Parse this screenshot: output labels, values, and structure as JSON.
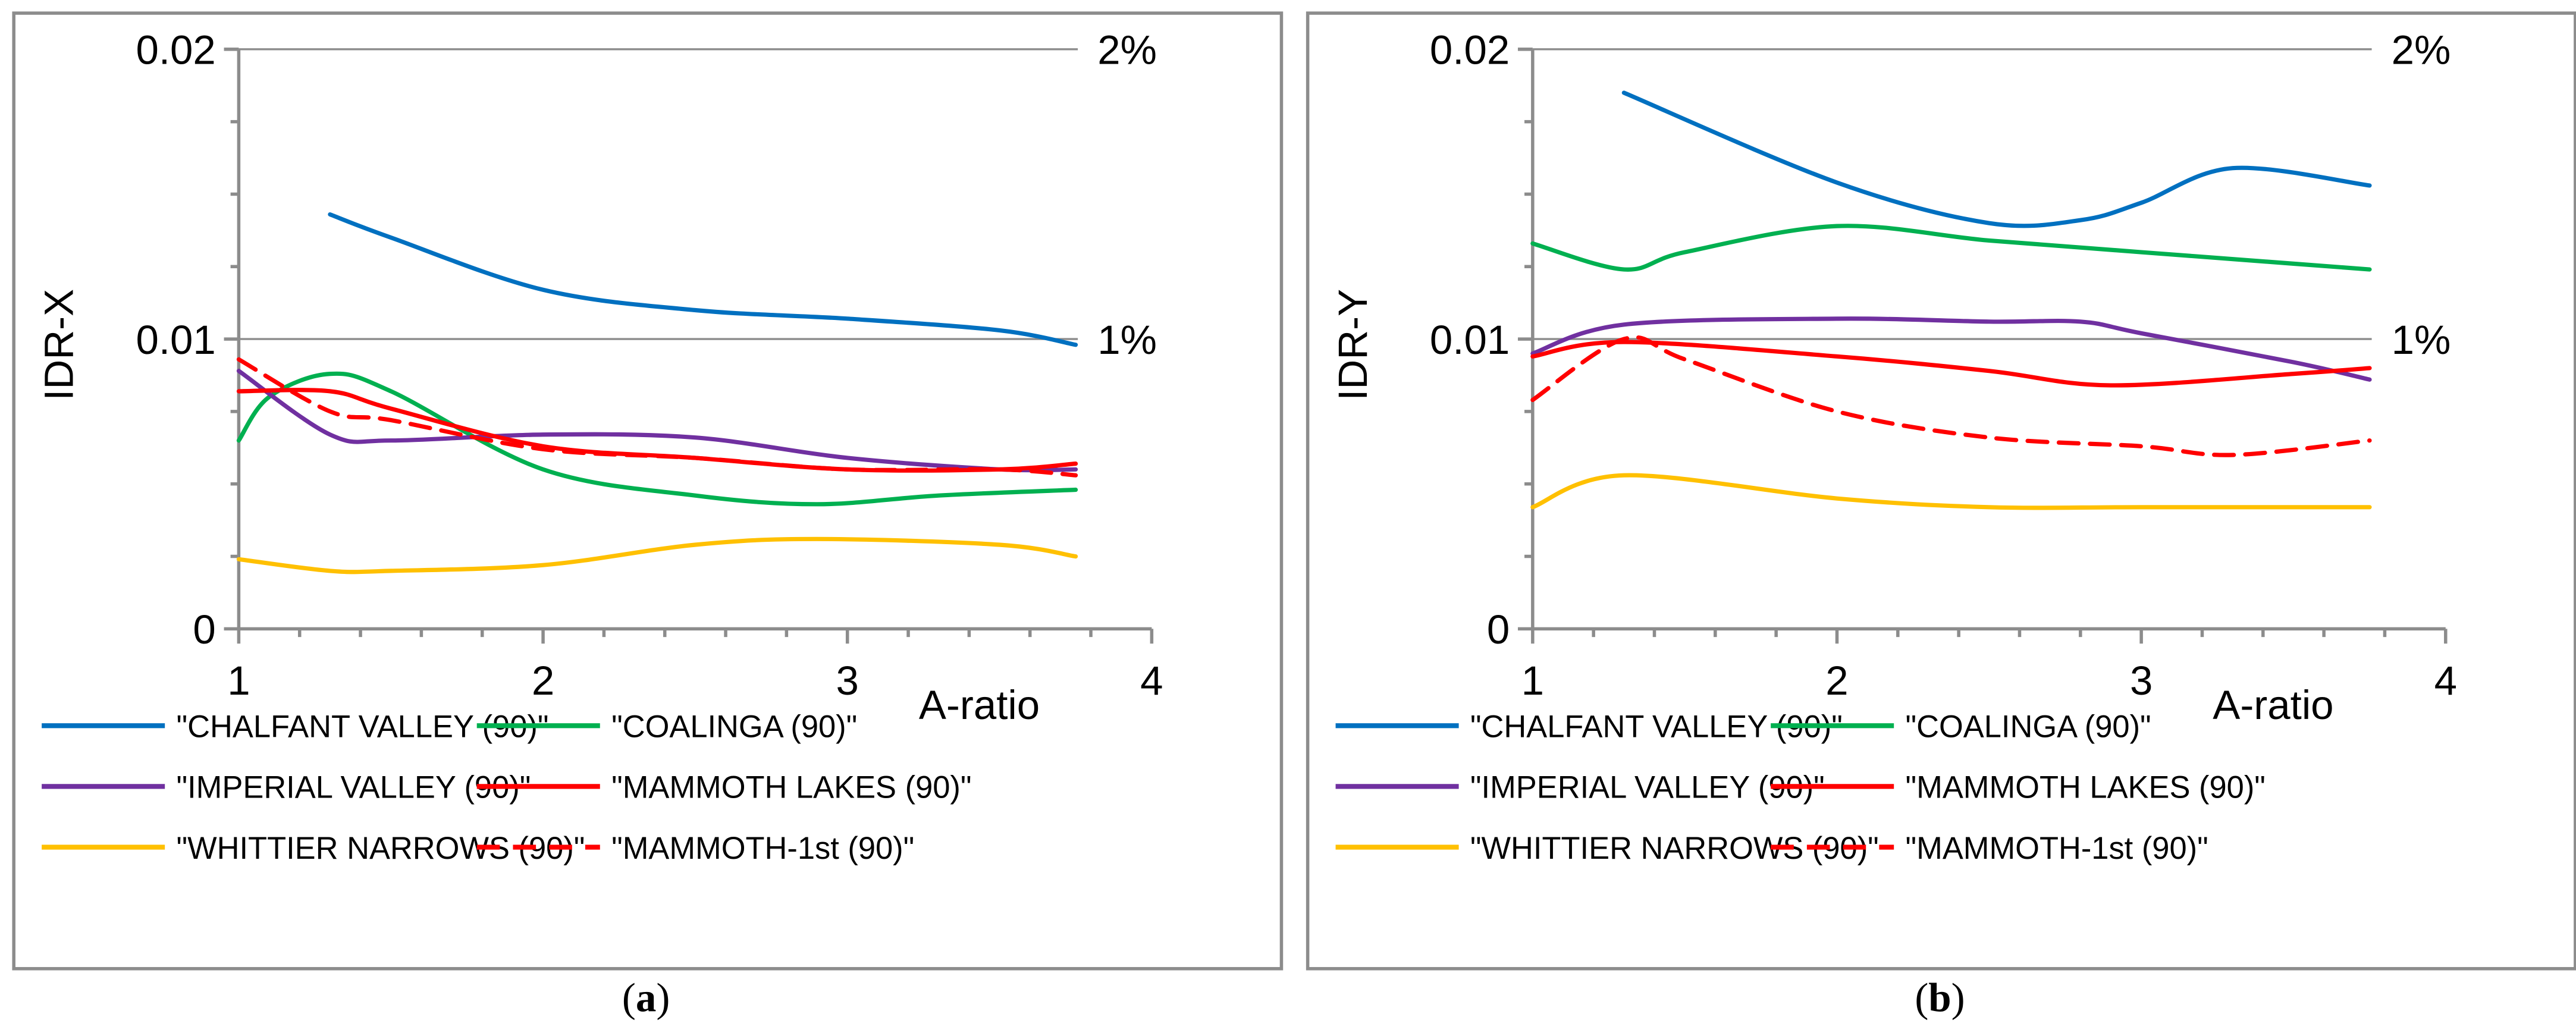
{
  "chart_data": [
    {
      "type": "line",
      "panel_label": "a",
      "ylabel": "IDR-X",
      "xlabel": "A-ratio",
      "xlim": [
        1,
        4
      ],
      "ylim": [
        0,
        0.02
      ],
      "x_ticks": [
        "1",
        "2",
        "3",
        "4"
      ],
      "y_ticks": [
        "0",
        "0.01",
        "0.02"
      ],
      "right_labels": [
        {
          "value": 0.01,
          "label": "1%"
        },
        {
          "value": 0.02,
          "label": "2%"
        }
      ],
      "grid": "horizontal at 0.01 and 0.02",
      "legend_position": "bottom",
      "series": [
        {
          "name": "\"CHALFANT VALLEY (90)\"",
          "color": "#0070C0",
          "dash": false,
          "x": [
            1.3,
            1.5,
            2,
            2.5,
            3,
            3.5,
            3.75
          ],
          "y": [
            0.0143,
            0.0135,
            0.0117,
            0.011,
            0.0107,
            0.0103,
            0.0098
          ]
        },
        {
          "name": "\"COALINGA (90)\"",
          "color": "#00B050",
          "dash": false,
          "x": [
            1,
            1.1,
            1.3,
            1.5,
            2,
            2.5,
            2.9,
            3.3,
            3.75
          ],
          "y": [
            0.0065,
            0.008,
            0.0088,
            0.0082,
            0.0055,
            0.0046,
            0.0043,
            0.0046,
            0.0048
          ]
        },
        {
          "name": "\"IMPERIAL VALLEY (90)\"",
          "color": "#7030A0",
          "dash": false,
          "x": [
            1,
            1.3,
            1.5,
            2,
            2.5,
            3,
            3.5,
            3.75
          ],
          "y": [
            0.0089,
            0.0067,
            0.0065,
            0.0067,
            0.0066,
            0.0059,
            0.0055,
            0.0055
          ]
        },
        {
          "name": "\"MAMMOTH LAKES (90)\"",
          "color": "#FF0000",
          "dash": false,
          "x": [
            1,
            1.3,
            1.5,
            2,
            2.5,
            3,
            3.5,
            3.75
          ],
          "y": [
            0.0082,
            0.0082,
            0.0076,
            0.0063,
            0.0059,
            0.0055,
            0.0055,
            0.0057
          ]
        },
        {
          "name": "\"WHITTIER NARROWS (90)\"",
          "color": "#FFC000",
          "dash": false,
          "x": [
            1,
            1.3,
            1.5,
            2,
            2.5,
            2.9,
            3.5,
            3.75
          ],
          "y": [
            0.0024,
            0.002,
            0.002,
            0.0022,
            0.0029,
            0.0031,
            0.0029,
            0.0025
          ]
        },
        {
          "name": "\"MAMMOTH-1st (90)\"",
          "color": "#FF0000",
          "dash": true,
          "x": [
            1,
            1.3,
            1.5,
            2,
            2.5,
            3,
            3.5,
            3.75
          ],
          "y": [
            0.0093,
            0.0075,
            0.0072,
            0.0062,
            0.0059,
            0.0055,
            0.0055,
            0.0053
          ]
        }
      ]
    },
    {
      "type": "line",
      "panel_label": "b",
      "ylabel": "IDR-Y",
      "xlabel": "A-ratio",
      "xlim": [
        1,
        4
      ],
      "ylim": [
        0,
        0.02
      ],
      "x_ticks": [
        "1",
        "2",
        "3",
        "4"
      ],
      "y_ticks": [
        "0",
        "0.01",
        "0.02"
      ],
      "right_labels": [
        {
          "value": 0.01,
          "label": "1%"
        },
        {
          "value": 0.02,
          "label": "2%"
        }
      ],
      "grid": "horizontal at 0.01 and 0.02",
      "legend_position": "bottom",
      "series": [
        {
          "name": "\"CHALFANT VALLEY (90)\"",
          "color": "#0070C0",
          "dash": false,
          "x": [
            1.3,
            2,
            2.5,
            2.8,
            3,
            3.3,
            3.75
          ],
          "y": [
            0.0185,
            0.0154,
            0.014,
            0.0141,
            0.0147,
            0.0159,
            0.0153
          ]
        },
        {
          "name": "\"COALINGA (90)\"",
          "color": "#00B050",
          "dash": false,
          "x": [
            1,
            1.3,
            1.5,
            2,
            2.5,
            3,
            3.5,
            3.75
          ],
          "y": [
            0.0133,
            0.0124,
            0.013,
            0.0139,
            0.0134,
            0.013,
            0.0126,
            0.0124
          ]
        },
        {
          "name": "\"IMPERIAL VALLEY (90)\"",
          "color": "#7030A0",
          "dash": false,
          "x": [
            1,
            1.3,
            2,
            2.5,
            2.8,
            3,
            3.5,
            3.75
          ],
          "y": [
            0.0095,
            0.0105,
            0.0107,
            0.0106,
            0.0106,
            0.0102,
            0.0092,
            0.0086
          ]
        },
        {
          "name": "\"MAMMOTH LAKES (90)\"",
          "color": "#FF0000",
          "dash": false,
          "x": [
            1,
            1.3,
            2,
            2.5,
            2.9,
            3.5,
            3.75
          ],
          "y": [
            0.0094,
            0.0099,
            0.0094,
            0.0089,
            0.0084,
            0.0088,
            0.009
          ]
        },
        {
          "name": "\"WHITTIER NARROWS (90)\"",
          "color": "#FFC000",
          "dash": false,
          "x": [
            1,
            1.3,
            2,
            2.5,
            3,
            3.75
          ],
          "y": [
            0.0042,
            0.0053,
            0.0045,
            0.0042,
            0.0042,
            0.0042
          ]
        },
        {
          "name": "\"MAMMOTH-1st (90)\"",
          "color": "#FF0000",
          "dash": true,
          "x": [
            1,
            1.3,
            1.5,
            2,
            2.5,
            3,
            3.3,
            3.75
          ],
          "y": [
            0.0079,
            0.01,
            0.0093,
            0.0075,
            0.0066,
            0.0063,
            0.006,
            0.0065
          ]
        }
      ]
    }
  ]
}
